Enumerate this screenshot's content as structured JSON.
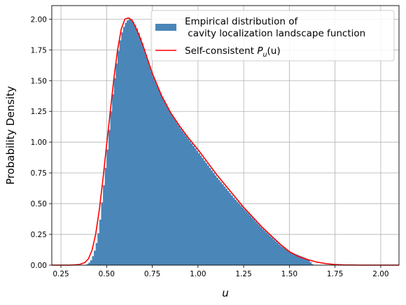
{
  "chart_data": {
    "type": "bar",
    "xlabel": "u",
    "ylabel": "Probability Density",
    "xlim": [
      0.2,
      2.1
    ],
    "ylim": [
      0.0,
      2.11
    ],
    "xticks": [
      "0.25",
      "0.50",
      "0.75",
      "1.00",
      "1.25",
      "1.50",
      "1.75",
      "2.00"
    ],
    "yticks": [
      "0.00",
      "0.25",
      "0.50",
      "0.75",
      "1.00",
      "1.25",
      "1.50",
      "1.75",
      "2.00"
    ],
    "grid": true,
    "legend_position": "top-right",
    "colors": {
      "histogram": "#4a86b8",
      "curve": "#ff0000",
      "grid": "#b0b0b0"
    },
    "series": [
      {
        "name": "Empirical distribution of\n cavity localization landscape function",
        "kind": "histogram",
        "bin_width": 0.01,
        "profile": [
          [
            0.38,
            0.0
          ],
          [
            0.4,
            0.01
          ],
          [
            0.42,
            0.05
          ],
          [
            0.44,
            0.14
          ],
          [
            0.46,
            0.3
          ],
          [
            0.48,
            0.58
          ],
          [
            0.5,
            0.86
          ],
          [
            0.52,
            1.18
          ],
          [
            0.54,
            1.46
          ],
          [
            0.56,
            1.7
          ],
          [
            0.58,
            1.87
          ],
          [
            0.6,
            1.96
          ],
          [
            0.62,
            2.0
          ],
          [
            0.64,
            1.99
          ],
          [
            0.66,
            1.94
          ],
          [
            0.68,
            1.87
          ],
          [
            0.7,
            1.78
          ],
          [
            0.75,
            1.55
          ],
          [
            0.8,
            1.38
          ],
          [
            0.85,
            1.24
          ],
          [
            0.9,
            1.12
          ],
          [
            0.95,
            1.02
          ],
          [
            1.0,
            0.92
          ],
          [
            1.05,
            0.82
          ],
          [
            1.1,
            0.72
          ],
          [
            1.15,
            0.63
          ],
          [
            1.2,
            0.54
          ],
          [
            1.25,
            0.46
          ],
          [
            1.3,
            0.38
          ],
          [
            1.35,
            0.3
          ],
          [
            1.4,
            0.23
          ],
          [
            1.45,
            0.16
          ],
          [
            1.5,
            0.11
          ],
          [
            1.55,
            0.08
          ],
          [
            1.6,
            0.05
          ],
          [
            1.63,
            0.0
          ]
        ]
      },
      {
        "name": "Self-consistent P_u(u)",
        "kind": "line",
        "points": [
          [
            0.2,
            0.0
          ],
          [
            0.3,
            0.0
          ],
          [
            0.35,
            0.005
          ],
          [
            0.38,
            0.02
          ],
          [
            0.4,
            0.05
          ],
          [
            0.42,
            0.12
          ],
          [
            0.44,
            0.25
          ],
          [
            0.46,
            0.45
          ],
          [
            0.48,
            0.7
          ],
          [
            0.5,
            0.98
          ],
          [
            0.52,
            1.25
          ],
          [
            0.54,
            1.52
          ],
          [
            0.56,
            1.75
          ],
          [
            0.58,
            1.92
          ],
          [
            0.6,
            2.0
          ],
          [
            0.62,
            2.01
          ],
          [
            0.64,
            1.99
          ],
          [
            0.66,
            1.93
          ],
          [
            0.68,
            1.86
          ],
          [
            0.7,
            1.78
          ],
          [
            0.75,
            1.56
          ],
          [
            0.8,
            1.38
          ],
          [
            0.85,
            1.24
          ],
          [
            0.9,
            1.13
          ],
          [
            0.95,
            1.03
          ],
          [
            1.0,
            0.94
          ],
          [
            1.05,
            0.84
          ],
          [
            1.1,
            0.74
          ],
          [
            1.15,
            0.65
          ],
          [
            1.2,
            0.56
          ],
          [
            1.25,
            0.47
          ],
          [
            1.3,
            0.39
          ],
          [
            1.35,
            0.31
          ],
          [
            1.4,
            0.24
          ],
          [
            1.45,
            0.17
          ],
          [
            1.5,
            0.11
          ],
          [
            1.55,
            0.07
          ],
          [
            1.6,
            0.045
          ],
          [
            1.65,
            0.025
          ],
          [
            1.7,
            0.012
          ],
          [
            1.75,
            0.005
          ],
          [
            1.8,
            0.002
          ],
          [
            1.9,
            0.0
          ],
          [
            2.1,
            0.0
          ]
        ]
      }
    ],
    "legend": {
      "hist_line1": "Empirical distribution of",
      "hist_line2": " cavity localization landscape function",
      "curve_prefix": "Self-consistent ",
      "curve_symbol": "P",
      "curve_sub": "u",
      "curve_arg": "(u)"
    }
  }
}
